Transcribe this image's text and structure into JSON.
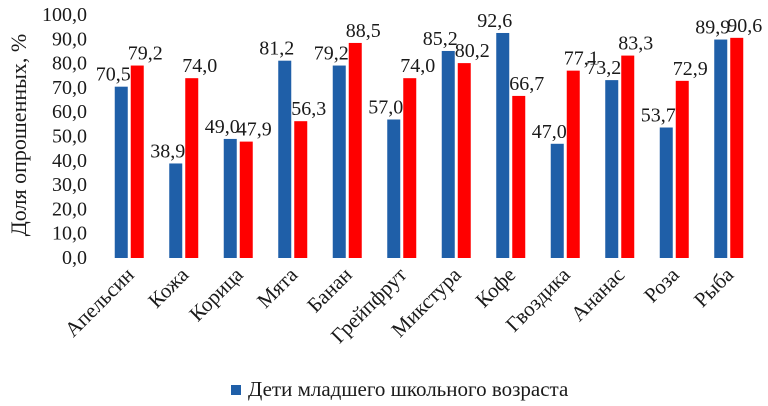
{
  "chart_data": {
    "type": "bar",
    "ylabel": "Доля опрошенных, %",
    "ylim": [
      0,
      100
    ],
    "ytick_step": 10,
    "grid": false,
    "legend_position": "bottom",
    "categories": [
      "Апельсин",
      "Кожа",
      "Корица",
      "Мята",
      "Банан",
      "Грейпфрут",
      "Микстура",
      "Кофе",
      "Гвоздика",
      "Ананас",
      "Роза",
      "Рыба"
    ],
    "series": [
      {
        "name": "Дети младшего школьного возраста",
        "color": "#1f5fa8",
        "values": [
          70.5,
          38.9,
          49.0,
          81.2,
          79.2,
          57.0,
          85.2,
          92.6,
          47.0,
          73.2,
          53.7,
          89.9
        ]
      },
      {
        "color": "#ff0000",
        "values": [
          79.2,
          74.0,
          47.9,
          56.3,
          88.5,
          74.0,
          80.2,
          66.7,
          77.1,
          83.3,
          72.9,
          90.6
        ]
      }
    ]
  }
}
